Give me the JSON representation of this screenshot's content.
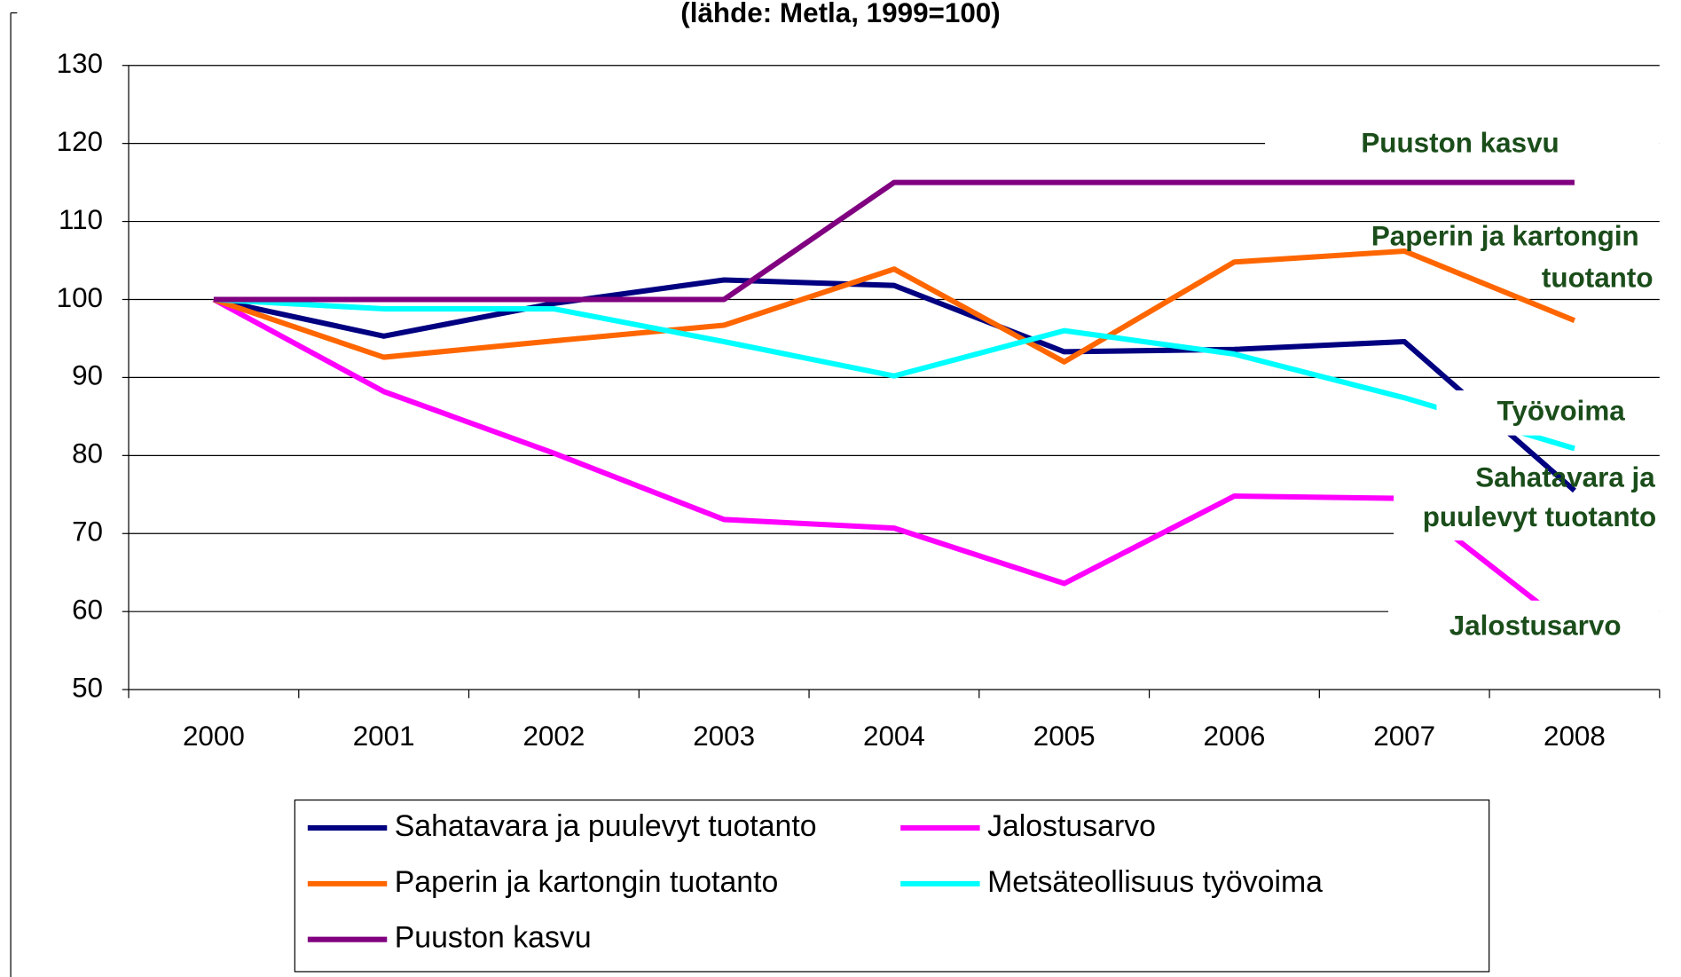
{
  "chart_data": {
    "type": "line",
    "title": "(lähde: Metla, 1999=100)",
    "categories": [
      "2000",
      "2001",
      "2002",
      "2003",
      "2004",
      "2005",
      "2006",
      "2007",
      "2008"
    ],
    "series": [
      {
        "name": "Sahatavara ja puulevyt tuotanto",
        "color": "#000080",
        "values": [
          100,
          95.3,
          99.5,
          102.5,
          101.8,
          93.3,
          93.6,
          94.6,
          75.5
        ]
      },
      {
        "name": "Jalostusarvo",
        "color": "#ff00ff",
        "values": [
          100,
          88.2,
          80.3,
          71.8,
          70.7,
          63.6,
          74.8,
          74.5,
          57.5
        ]
      },
      {
        "name": "Paperin ja kartongin tuotanto",
        "color": "#ff6600",
        "values": [
          100,
          92.6,
          94.7,
          96.7,
          103.9,
          92.0,
          104.8,
          106.2,
          97.3
        ]
      },
      {
        "name": "Metsäteollisuus työvoima",
        "color": "#00ffff",
        "values": [
          100,
          98.8,
          98.8,
          94.6,
          90.2,
          96.0,
          93.0,
          87.4,
          80.9
        ]
      },
      {
        "name": "Puuston kasvu",
        "color": "#800080",
        "values": [
          100,
          100,
          100,
          100,
          115,
          115,
          115,
          115,
          115
        ]
      }
    ],
    "ylim": [
      50,
      130
    ],
    "yticks": [
      50,
      60,
      70,
      80,
      90,
      100,
      110,
      120,
      130
    ],
    "grid": true,
    "annotations": [
      [
        "Puuston kasvu"
      ],
      [
        "Paperin ja kartongin",
        "tuotanto"
      ],
      [
        "Työvoima"
      ],
      [
        "Sahatavara ja",
        "puulevyt tuotanto"
      ],
      [
        "Jalostusarvo"
      ]
    ]
  }
}
